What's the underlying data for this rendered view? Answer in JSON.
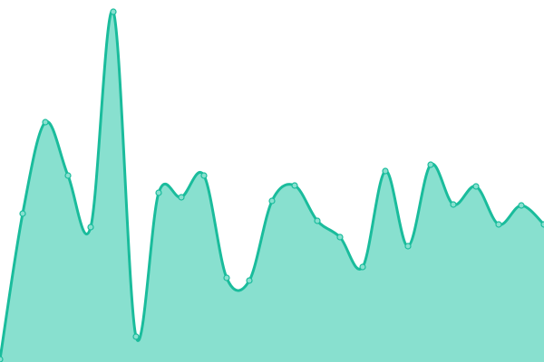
{
  "chart_data": {
    "type": "area",
    "title": "",
    "xlabel": "",
    "ylabel": "",
    "x": [
      0,
      1,
      2,
      3,
      4,
      5,
      6,
      7,
      8,
      9,
      10,
      11,
      12,
      13,
      14,
      15,
      16,
      17,
      18,
      19,
      20,
      21,
      22,
      23,
      24
    ],
    "values": [
      3,
      164,
      265,
      206,
      149,
      387,
      28,
      187,
      182,
      206,
      93,
      90,
      178,
      195,
      156,
      138,
      105,
      211,
      128,
      218,
      174,
      194,
      152,
      173,
      152
    ],
    "ylim": [
      0,
      400
    ],
    "grid": false,
    "axes_visible": false,
    "curve": "smooth",
    "colors": {
      "line": "#1abc9c",
      "fill": "#88e0cf",
      "point_fill": "#88e0cf"
    }
  }
}
